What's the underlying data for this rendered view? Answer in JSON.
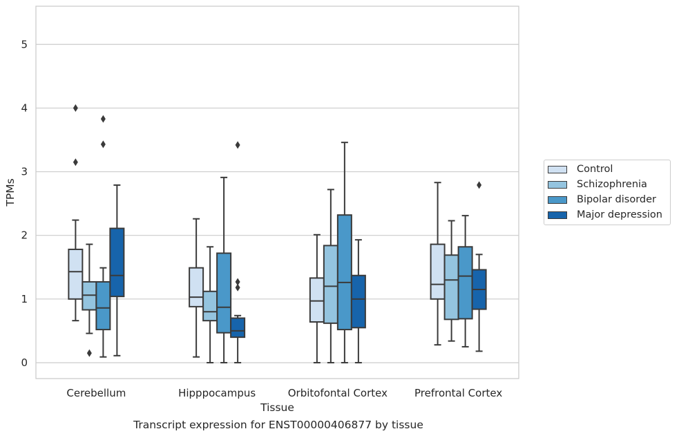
{
  "caption": "Transcript expression for ENST00000406877 by tissue",
  "chart_data": {
    "type": "boxplot",
    "xlabel": "Tissue",
    "ylabel": "TPMs",
    "ylim": [
      -0.25,
      5.6
    ],
    "yticks": [
      0,
      1,
      2,
      3,
      4,
      5
    ],
    "grid": "horizontal",
    "legend_placement": "center-right, outside plot",
    "categories": [
      "Cerebellum",
      "Hipppocampus",
      "Orbitofontal Cortex",
      "Prefrontal Cortex"
    ],
    "series": [
      {
        "name": "Control",
        "color": "#d0e1f2",
        "boxes": [
          {
            "whislo": 0.66,
            "q1": 1.0,
            "med": 1.43,
            "q3": 1.78,
            "whishi": 2.24,
            "fliers": [
              3.15,
              4.0
            ]
          },
          {
            "whislo": 0.09,
            "q1": 0.88,
            "med": 1.03,
            "q3": 1.49,
            "whishi": 2.26,
            "fliers": []
          },
          {
            "whislo": 0.0,
            "q1": 0.64,
            "med": 0.97,
            "q3": 1.33,
            "whishi": 2.01,
            "fliers": []
          },
          {
            "whislo": 0.28,
            "q1": 1.0,
            "med": 1.23,
            "q3": 1.86,
            "whishi": 2.83,
            "fliers": []
          }
        ]
      },
      {
        "name": "Schizophrenia",
        "color": "#94c4df",
        "boxes": [
          {
            "whislo": 0.46,
            "q1": 0.83,
            "med": 1.06,
            "q3": 1.27,
            "whishi": 1.86,
            "fliers": [
              0.15
            ]
          },
          {
            "whislo": 0.0,
            "q1": 0.66,
            "med": 0.8,
            "q3": 1.12,
            "whishi": 1.82,
            "fliers": []
          },
          {
            "whislo": 0.0,
            "q1": 0.62,
            "med": 1.2,
            "q3": 1.84,
            "whishi": 2.72,
            "fliers": []
          },
          {
            "whislo": 0.34,
            "q1": 0.68,
            "med": 1.3,
            "q3": 1.69,
            "whishi": 2.23,
            "fliers": []
          }
        ]
      },
      {
        "name": "Bipolar disorder",
        "color": "#4a98c9",
        "boxes": [
          {
            "whislo": 0.09,
            "q1": 0.52,
            "med": 0.86,
            "q3": 1.27,
            "whishi": 1.49,
            "fliers": [
              3.43,
              3.83
            ]
          },
          {
            "whislo": 0.0,
            "q1": 0.47,
            "med": 0.87,
            "q3": 1.72,
            "whishi": 2.91,
            "fliers": []
          },
          {
            "whislo": 0.0,
            "q1": 0.52,
            "med": 1.26,
            "q3": 2.32,
            "whishi": 3.46,
            "fliers": []
          },
          {
            "whislo": 0.25,
            "q1": 0.69,
            "med": 1.36,
            "q3": 1.82,
            "whishi": 2.31,
            "fliers": []
          }
        ]
      },
      {
        "name": "Major depression",
        "color": "#1764ab",
        "boxes": [
          {
            "whislo": 0.11,
            "q1": 1.04,
            "med": 1.37,
            "q3": 2.11,
            "whishi": 2.79,
            "fliers": []
          },
          {
            "whislo": 0.0,
            "q1": 0.4,
            "med": 0.5,
            "q3": 0.7,
            "whishi": 0.74,
            "fliers": [
              1.18,
              1.27,
              3.42
            ]
          },
          {
            "whislo": 0.0,
            "q1": 0.55,
            "med": 1.0,
            "q3": 1.37,
            "whishi": 1.93,
            "fliers": []
          },
          {
            "whislo": 0.18,
            "q1": 0.84,
            "med": 1.15,
            "q3": 1.46,
            "whishi": 1.7,
            "fliers": [
              2.79
            ]
          }
        ]
      }
    ]
  }
}
